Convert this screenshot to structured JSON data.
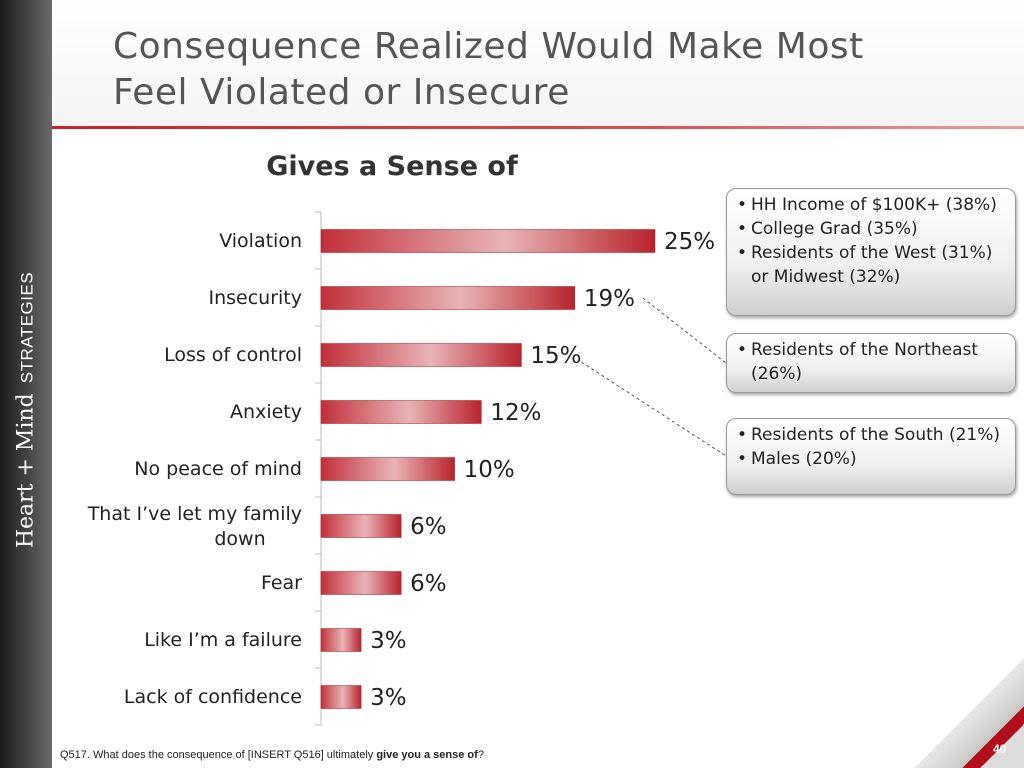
{
  "slide": {
    "title_line1": "Consequence Realized Would Make Most",
    "title_line2": "Feel Violated or Insecure",
    "brand_heart_mind": "Heart + Mind",
    "brand_strategies": "STRATEGIES",
    "page_number": "40",
    "colors": {
      "accent": "#c8232c",
      "title": "#555555",
      "sidebar": "#2a2a2a"
    }
  },
  "footnote": {
    "prefix": "Q517. What does the consequence of [INSERT Q516] ultimately ",
    "bold": "give you a sense of",
    "suffix": "?"
  },
  "chart_data": {
    "type": "bar",
    "orientation": "horizontal",
    "title": "Gives a Sense of",
    "categories": [
      "Violation",
      "Insecurity",
      "Loss of control",
      "Anxiety",
      "No peace of mind",
      "That I’ve let my family down",
      "Fear",
      "Like I’m a failure",
      "Lack of confidence"
    ],
    "values": [
      25,
      19,
      15,
      12,
      10,
      6,
      6,
      3,
      3
    ],
    "value_labels": [
      "25%",
      "19%",
      "15%",
      "12%",
      "10%",
      "6%",
      "6%",
      "3%",
      "3%"
    ],
    "xlim": [
      0,
      30
    ],
    "grid": false,
    "legend": "none",
    "bar_color": "#c8232c"
  },
  "callouts": [
    {
      "items": [
        "HH Income of $100K+ (38%)",
        "College  Grad (35%)",
        "Residents of the West (31%) or Midwest (32%)"
      ]
    },
    {
      "items": [
        "Residents of the Northeast (26%)"
      ]
    },
    {
      "items": [
        "Residents of the South (21%)",
        "Males (20%)"
      ]
    }
  ]
}
